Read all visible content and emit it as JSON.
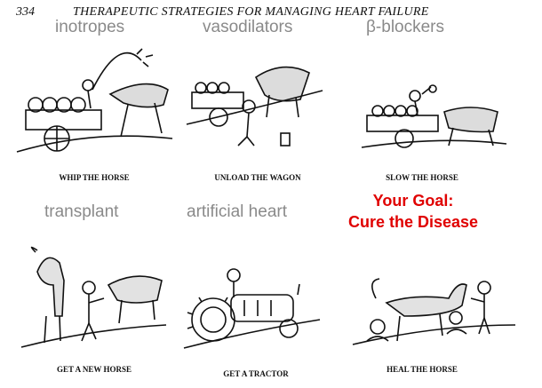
{
  "header": {
    "page_number": "334",
    "title": "THERAPEUTIC STRATEGIES FOR MANAGING HEART FAILURE"
  },
  "labels": {
    "inotropes": "inotropes",
    "vasodilators": "vasodilators",
    "beta_blockers": "β-blockers",
    "transplant": "transplant",
    "artificial_heart": "artificial heart"
  },
  "captions": {
    "whip": "WHIP THE HORSE",
    "unload": "UNLOAD THE WAGON",
    "slow": "SLOW THE HORSE",
    "new_horse": "GET A NEW HORSE",
    "tractor": "GET A TRACTOR",
    "heal": "HEAL THE HORSE"
  },
  "goal": {
    "line1": "Your Goal:",
    "line2": "Cure the Disease"
  }
}
